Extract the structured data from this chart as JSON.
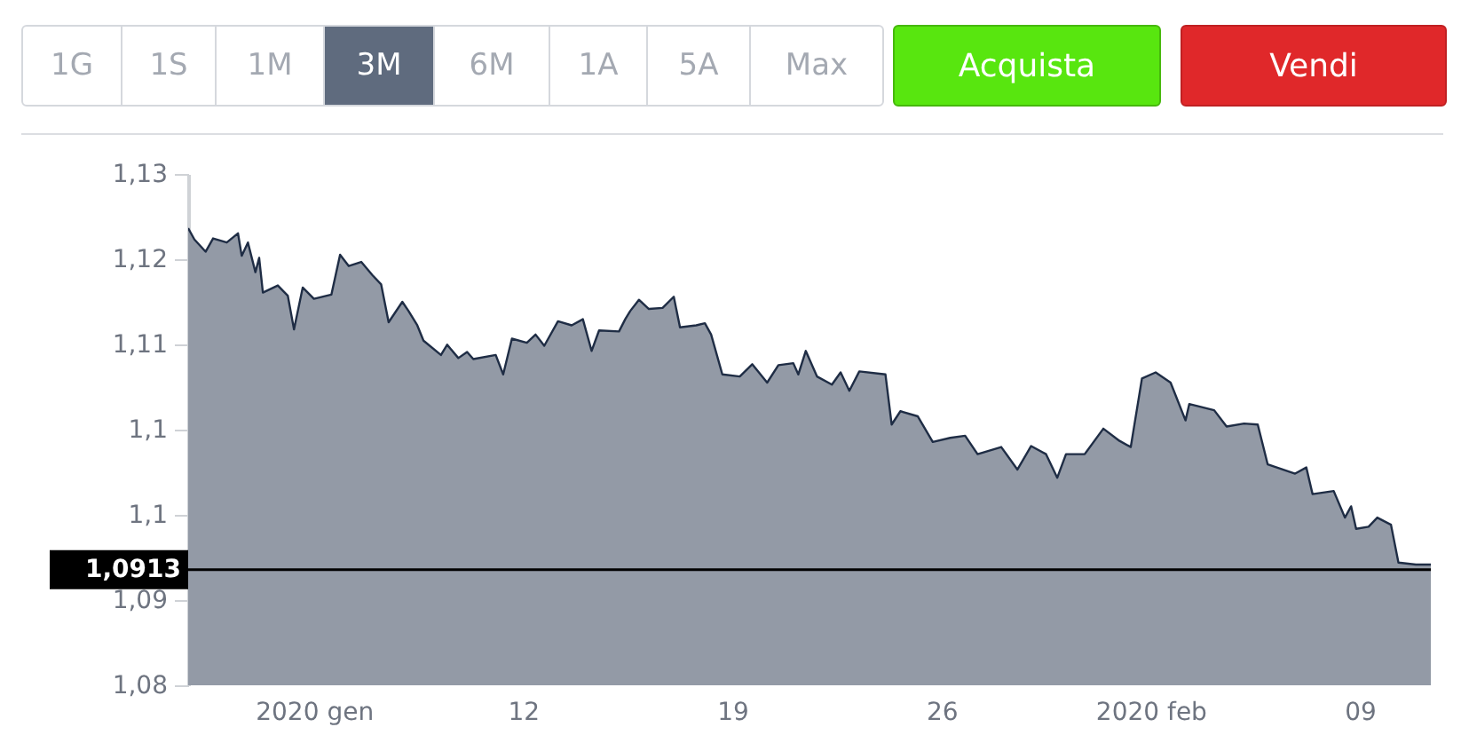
{
  "chart_data": {
    "type": "area",
    "annotations": [
      "1G",
      "1S",
      "1M",
      "3M",
      "6M",
      "1A",
      "5A",
      "Max",
      "Acquista",
      "Vendi"
    ],
    "x": [
      "2019-12-31T19:00",
      "2020-01-01T00:00",
      "2020-01-01T09:00",
      "2020-01-01T15:00",
      "2020-01-02T02:00",
      "2020-01-02T11:00",
      "2020-01-02T14:00",
      "2020-01-02T19:00",
      "2020-01-03T01:00",
      "2020-01-03T04:00",
      "2020-01-03T07:00",
      "2020-01-03T19:00",
      "2020-01-04T03:00",
      "2020-01-04T08:00",
      "2020-01-04T15:00",
      "2020-01-05T00:00",
      "2020-01-05T14:00",
      "2020-01-05T21:00",
      "2020-01-06T04:00",
      "2020-01-06T14:00",
      "2020-01-06T23:00",
      "2020-01-07T06:00",
      "2020-01-07T12:00",
      "2020-01-07T23:00",
      "2020-01-08T04:00",
      "2020-01-08T11:00",
      "2020-01-08T16:00",
      "2020-01-09T06:00",
      "2020-01-09T11:00",
      "2020-01-09T20:00",
      "2020-01-10T03:00",
      "2020-01-10T08:00",
      "2020-01-11T02:00",
      "2020-01-11T08:00",
      "2020-01-11T15:00",
      "2020-01-12T03:00",
      "2020-01-12T10:00",
      "2020-01-12T17:00",
      "2020-01-13T04:00",
      "2020-01-13T15:00",
      "2020-01-14T00:00",
      "2020-01-14T07:00",
      "2020-01-14T13:00",
      "2020-01-15T05:00",
      "2020-01-15T10:00",
      "2020-01-15T14:00",
      "2020-01-15T21:00",
      "2020-01-16T05:00",
      "2020-01-16T16:00",
      "2020-01-17T01:00",
      "2020-01-17T06:00",
      "2020-01-17T19:00",
      "2020-01-18T02:00",
      "2020-01-18T07:00",
      "2020-01-18T16:00",
      "2020-01-19T06:00",
      "2020-01-19T16:00",
      "2020-01-20T04:00",
      "2020-01-20T13:00",
      "2020-01-21T01:00",
      "2020-01-21T05:00",
      "2020-01-21T11:00",
      "2020-01-21T20:00",
      "2020-01-22T08:00",
      "2020-01-22T15:00",
      "2020-01-22T22:00",
      "2020-01-23T06:00",
      "2020-01-24T03:00",
      "2020-01-24T08:00",
      "2020-01-24T15:00",
      "2020-01-25T05:00",
      "2020-01-25T17:00",
      "2020-01-26T07:00",
      "2020-01-26T19:00",
      "2020-01-27T05:00",
      "2020-01-28T00:00",
      "2020-01-28T13:00",
      "2020-01-29T00:00",
      "2020-01-29T12:00",
      "2020-01-29T21:00",
      "2020-01-30T04:00",
      "2020-01-30T19:00",
      "2020-01-31T10:00",
      "2020-01-31T23:00",
      "2020-02-01T08:00",
      "2020-02-01T17:00",
      "2020-02-02T04:00",
      "2020-02-02T16:00",
      "2020-02-03T04:00",
      "2020-02-03T07:00",
      "2020-02-04T03:00",
      "2020-02-04T13:00",
      "2020-02-05T03:00",
      "2020-02-05T14:00",
      "2020-02-05T22:00",
      "2020-02-06T20:00",
      "2020-02-07T05:00",
      "2020-02-07T10:00",
      "2020-02-08T03:00",
      "2020-02-08T12:00",
      "2020-02-08T17:00",
      "2020-02-08T21:00",
      "2020-02-09T07:00",
      "2020-02-09T14:00",
      "2020-02-10T01:00",
      "2020-02-10T07:00",
      "2020-02-10T21:00",
      "2020-02-11T09:00"
    ],
    "series": [
      {
        "color": "#939aa6",
        "values": [
          1.1247,
          1.1236,
          1.1224,
          1.1237,
          1.1233,
          1.1242,
          1.122,
          1.1233,
          1.1204,
          1.1218,
          1.1184,
          1.1191,
          1.1181,
          1.1148,
          1.1189,
          1.1178,
          1.1182,
          1.1221,
          1.121,
          1.1214,
          1.1201,
          1.1192,
          1.1155,
          1.1175,
          1.1166,
          1.1152,
          1.1137,
          1.1123,
          1.1133,
          1.112,
          1.1126,
          1.1119,
          1.1123,
          1.1104,
          1.1139,
          1.1135,
          1.1143,
          1.1132,
          1.1156,
          1.1152,
          1.1158,
          1.1127,
          1.1147,
          1.1146,
          1.1158,
          1.1166,
          1.1177,
          1.1168,
          1.1169,
          1.118,
          1.115,
          1.1152,
          1.1154,
          1.1143,
          1.1104,
          1.1102,
          1.1114,
          1.1096,
          1.1113,
          1.1115,
          1.1104,
          1.1127,
          1.1102,
          1.1094,
          1.1106,
          1.1088,
          1.1107,
          1.1104,
          1.1055,
          1.1068,
          1.1063,
          1.1038,
          1.1042,
          1.1044,
          1.1026,
          1.1033,
          1.1011,
          1.1034,
          1.1026,
          1.1003,
          1.1026,
          1.1026,
          1.1051,
          1.1039,
          1.1033,
          1.11,
          1.1106,
          1.1096,
          1.1059,
          1.1075,
          1.1069,
          1.1053,
          1.1056,
          1.1055,
          1.1016,
          1.1007,
          1.1013,
          1.0987,
          1.099,
          1.0964,
          1.0975,
          1.0953,
          1.0955,
          1.0964,
          1.0957,
          1.092,
          1.0918,
          1.0918
        ]
      }
    ],
    "xlim": [
      "2019-12-31T19:00",
      "2020-02-11T09:00"
    ],
    "xticks": [
      {
        "value": "2020-01-05",
        "label": "2020 gen"
      },
      {
        "value": "2020-01-12",
        "label": "12"
      },
      {
        "value": "2020-01-19",
        "label": "19"
      },
      {
        "value": "2020-01-26",
        "label": "26"
      },
      {
        "value": "2020-02-02",
        "label": "2020 feb"
      },
      {
        "value": "2020-02-09",
        "label": "09"
      }
    ],
    "ylim": [
      1.08,
      1.13
    ],
    "yticks": [
      {
        "value": 1.13,
        "label": "1,13"
      },
      {
        "value": 1.1217,
        "label": "1,12"
      },
      {
        "value": 1.1133,
        "label": "1,11"
      },
      {
        "value": 1.105,
        "label": "1,1"
      },
      {
        "value": 1.0967,
        "label": "1,1"
      },
      {
        "value": 1.0883,
        "label": "1,09"
      },
      {
        "value": 1.08,
        "label": "1,08"
      }
    ],
    "ref_lines": [
      {
        "axis": "y",
        "value": 1.0913,
        "label": "1,0913",
        "color": "#000000"
      }
    ]
  }
}
